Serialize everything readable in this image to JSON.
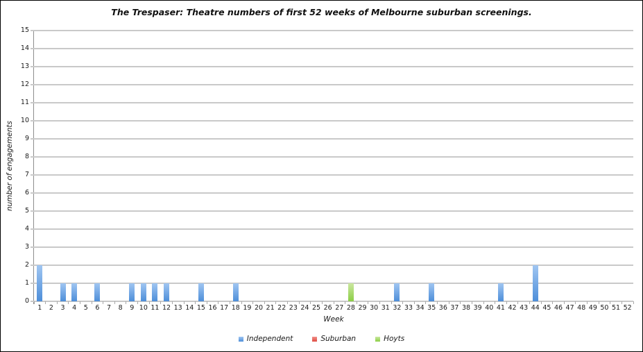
{
  "chart_data": {
    "type": "bar",
    "title": "The Trespaser: Theatre numbers of first 52 weeks of Melbourne suburban screenings.",
    "xlabel": "Week",
    "ylabel": "number of engagements",
    "ylim": [
      0,
      15
    ],
    "ytick_step": 1,
    "grid": true,
    "legend_position": "bottom",
    "x": [
      1,
      2,
      3,
      4,
      5,
      6,
      7,
      8,
      9,
      10,
      11,
      12,
      13,
      14,
      15,
      16,
      17,
      18,
      19,
      20,
      21,
      22,
      23,
      24,
      25,
      26,
      27,
      28,
      29,
      30,
      31,
      32,
      33,
      34,
      35,
      36,
      37,
      38,
      39,
      40,
      41,
      42,
      43,
      44,
      45,
      46,
      47,
      48,
      49,
      50,
      51,
      52
    ],
    "series": [
      {
        "name": "Independent",
        "color_top": "#A0C6F2",
        "color_bottom": "#4D8ED9",
        "values": [
          2,
          0,
          1,
          1,
          0,
          1,
          0,
          0,
          1,
          1,
          1,
          1,
          0,
          0,
          1,
          0,
          0,
          1,
          0,
          0,
          0,
          0,
          0,
          0,
          0,
          0,
          0,
          0,
          0,
          0,
          0,
          1,
          0,
          0,
          1,
          0,
          0,
          0,
          0,
          0,
          1,
          0,
          0,
          2,
          0,
          0,
          0,
          0,
          0,
          0,
          0,
          0
        ]
      },
      {
        "name": "Suburban",
        "color_top": "#F0918A",
        "color_bottom": "#DF4C43",
        "values": [
          0,
          0,
          0,
          0,
          0,
          0,
          0,
          0,
          0,
          0,
          0,
          0,
          0,
          0,
          0,
          0,
          0,
          0,
          0,
          0,
          0,
          0,
          0,
          0,
          0,
          0,
          0,
          0,
          0,
          0,
          0,
          0,
          0,
          0,
          0,
          0,
          0,
          0,
          0,
          0,
          0,
          0,
          0,
          0,
          0,
          0,
          0,
          0,
          0,
          0,
          0,
          0
        ]
      },
      {
        "name": "Hoyts",
        "color_top": "#CBE8A0",
        "color_bottom": "#8BCE45",
        "values": [
          0,
          0,
          0,
          0,
          0,
          0,
          0,
          0,
          0,
          0,
          0,
          0,
          0,
          0,
          0,
          0,
          0,
          0,
          0,
          0,
          0,
          0,
          0,
          0,
          0,
          0,
          0,
          1,
          0,
          0,
          0,
          0,
          0,
          0,
          0,
          0,
          0,
          0,
          0,
          0,
          0,
          0,
          0,
          0,
          0,
          0,
          0,
          0,
          0,
          0,
          0,
          0
        ]
      }
    ]
  },
  "style_colors": {
    "gridline": "#C9C9C9",
    "axis_line": "#8C8C8C",
    "tick": "#A8A8A8",
    "text": "#1A1A1A",
    "border": "#000000",
    "background": "#FFFFFF"
  }
}
